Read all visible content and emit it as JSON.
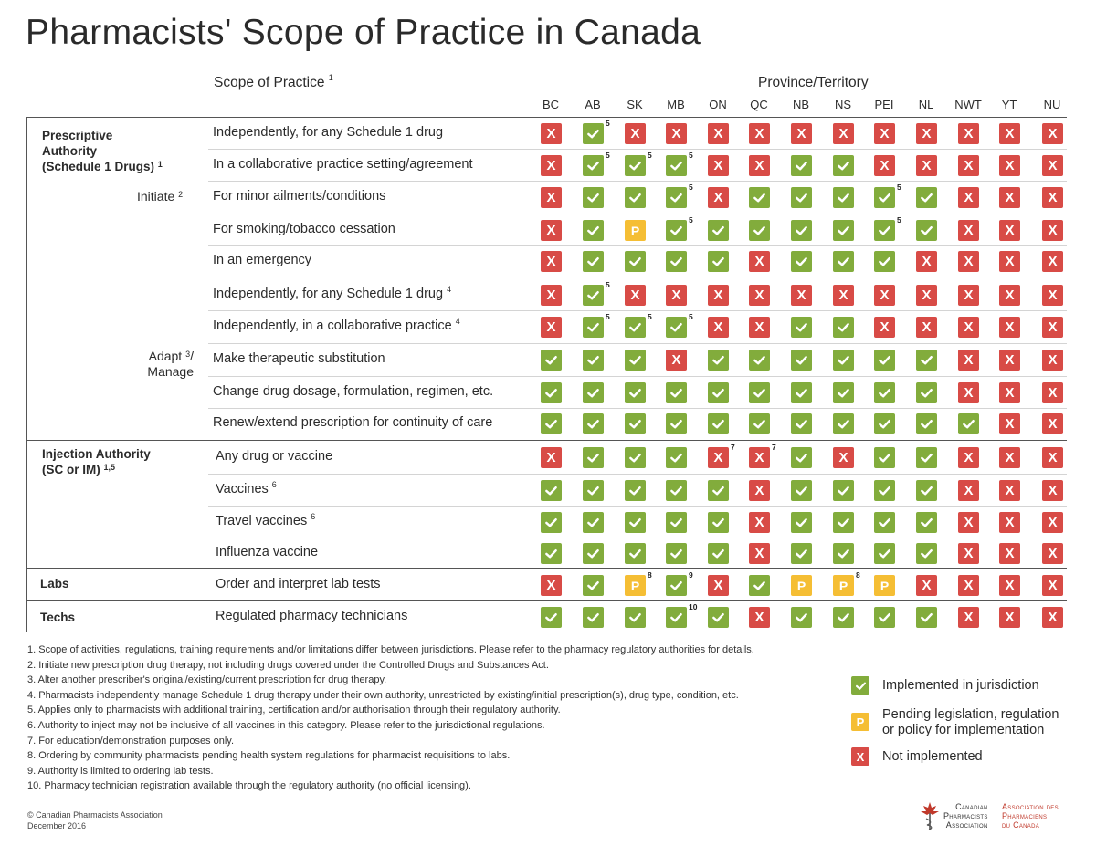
{
  "title": "Pharmacists' Scope of Practice in Canada",
  "headers": {
    "scope": "Scope of Practice",
    "scope_sup": "1",
    "province": "Province/Territory"
  },
  "provinces": [
    "BC",
    "AB",
    "SK",
    "MB",
    "ON",
    "QC",
    "NB",
    "NS",
    "PEI",
    "NL",
    "NWT",
    "YT",
    "NU"
  ],
  "groups": {
    "prescriptive": {
      "title_1": "Prescriptive",
      "title_2": "Authority",
      "title_3": "(Schedule 1 Drugs)",
      "title_sup": "1",
      "sub": "Initiate",
      "sub_sup": "2"
    },
    "adapt": {
      "line_1": "Adapt",
      "line_1_sup": "3",
      "line_1_suffix": "/",
      "line_2": "Manage"
    },
    "injection": {
      "title_1": "Injection Authority",
      "title_2": "(SC or IM)",
      "title_sup": "1,5"
    },
    "labs": {
      "title": "Labs"
    },
    "techs": {
      "title": "Techs"
    }
  },
  "rows": [
    {
      "label": "Independently, for any Schedule 1 drug",
      "sup": "",
      "status": [
        "x",
        "check",
        "x",
        "x",
        "x",
        "x",
        "x",
        "x",
        "x",
        "x",
        "x",
        "x",
        "x"
      ],
      "notes": [
        "",
        "5",
        "",
        "",
        "",
        "",
        "",
        "",
        "",
        "",
        "",
        "",
        ""
      ]
    },
    {
      "label": "In a collaborative practice setting/agreement",
      "sup": "",
      "status": [
        "x",
        "check",
        "check",
        "check",
        "x",
        "x",
        "check",
        "check",
        "x",
        "x",
        "x",
        "x",
        "x"
      ],
      "notes": [
        "",
        "5",
        "5",
        "5",
        "",
        "",
        "",
        "",
        "",
        "",
        "",
        "",
        ""
      ]
    },
    {
      "label": "For minor ailments/conditions",
      "sup": "",
      "status": [
        "x",
        "check",
        "check",
        "check",
        "x",
        "check",
        "check",
        "check",
        "check",
        "check",
        "x",
        "x",
        "x"
      ],
      "notes": [
        "",
        "",
        "",
        "5",
        "",
        "",
        "",
        "",
        "5",
        "",
        "",
        "",
        ""
      ]
    },
    {
      "label": "For smoking/tobacco cessation",
      "sup": "",
      "status": [
        "x",
        "check",
        "p",
        "check",
        "check",
        "check",
        "check",
        "check",
        "check",
        "check",
        "x",
        "x",
        "x"
      ],
      "notes": [
        "",
        "",
        "",
        "5",
        "",
        "",
        "",
        "",
        "5",
        "",
        "",
        "",
        ""
      ]
    },
    {
      "label": "In an emergency",
      "sup": "",
      "status": [
        "x",
        "check",
        "check",
        "check",
        "check",
        "x",
        "check",
        "check",
        "check",
        "x",
        "x",
        "x",
        "x"
      ],
      "notes": [
        "",
        "",
        "",
        "",
        "",
        "",
        "",
        "",
        "",
        "",
        "",
        "",
        ""
      ]
    },
    {
      "label": "Independently, for any Schedule 1 drug",
      "sup": "4",
      "status": [
        "x",
        "check",
        "x",
        "x",
        "x",
        "x",
        "x",
        "x",
        "x",
        "x",
        "x",
        "x",
        "x"
      ],
      "notes": [
        "",
        "5",
        "",
        "",
        "",
        "",
        "",
        "",
        "",
        "",
        "",
        "",
        ""
      ]
    },
    {
      "label": "Independently, in a collaborative practice",
      "sup": "4",
      "status": [
        "x",
        "check",
        "check",
        "check",
        "x",
        "x",
        "check",
        "check",
        "x",
        "x",
        "x",
        "x",
        "x"
      ],
      "notes": [
        "",
        "5",
        "5",
        "5",
        "",
        "",
        "",
        "",
        "",
        "",
        "",
        "",
        ""
      ]
    },
    {
      "label": "Make therapeutic substitution",
      "sup": "",
      "status": [
        "check",
        "check",
        "check",
        "x",
        "check",
        "check",
        "check",
        "check",
        "check",
        "check",
        "x",
        "x",
        "x"
      ],
      "notes": [
        "",
        "",
        "",
        "",
        "",
        "",
        "",
        "",
        "",
        "",
        "",
        "",
        ""
      ]
    },
    {
      "label": "Change drug dosage, formulation, regimen, etc.",
      "sup": "",
      "status": [
        "check",
        "check",
        "check",
        "check",
        "check",
        "check",
        "check",
        "check",
        "check",
        "check",
        "x",
        "x",
        "x"
      ],
      "notes": [
        "",
        "",
        "",
        "",
        "",
        "",
        "",
        "",
        "",
        "",
        "",
        "",
        ""
      ]
    },
    {
      "label": "Renew/extend prescription for continuity of care",
      "sup": "",
      "status": [
        "check",
        "check",
        "check",
        "check",
        "check",
        "check",
        "check",
        "check",
        "check",
        "check",
        "check",
        "x",
        "x"
      ],
      "notes": [
        "",
        "",
        "",
        "",
        "",
        "",
        "",
        "",
        "",
        "",
        "",
        "",
        ""
      ]
    },
    {
      "label": "Any drug or vaccine",
      "sup": "",
      "status": [
        "x",
        "check",
        "check",
        "check",
        "x",
        "x",
        "check",
        "x",
        "check",
        "check",
        "x",
        "x",
        "x"
      ],
      "notes": [
        "",
        "",
        "",
        "",
        "7",
        "7",
        "",
        "",
        "",
        "",
        "",
        "",
        ""
      ]
    },
    {
      "label": "Vaccines",
      "sup": "6",
      "status": [
        "check",
        "check",
        "check",
        "check",
        "check",
        "x",
        "check",
        "check",
        "check",
        "check",
        "x",
        "x",
        "x"
      ],
      "notes": [
        "",
        "",
        "",
        "",
        "",
        "",
        "",
        "",
        "",
        "",
        "",
        "",
        ""
      ]
    },
    {
      "label": "Travel vaccines",
      "sup": "6",
      "status": [
        "check",
        "check",
        "check",
        "check",
        "check",
        "x",
        "check",
        "check",
        "check",
        "check",
        "x",
        "x",
        "x"
      ],
      "notes": [
        "",
        "",
        "",
        "",
        "",
        "",
        "",
        "",
        "",
        "",
        "",
        "",
        ""
      ]
    },
    {
      "label": "Influenza vaccine",
      "sup": "",
      "status": [
        "check",
        "check",
        "check",
        "check",
        "check",
        "x",
        "check",
        "check",
        "check",
        "check",
        "x",
        "x",
        "x"
      ],
      "notes": [
        "",
        "",
        "",
        "",
        "",
        "",
        "",
        "",
        "",
        "",
        "",
        "",
        ""
      ]
    },
    {
      "label": "Order and interpret lab tests",
      "sup": "",
      "status": [
        "x",
        "check",
        "p",
        "check",
        "x",
        "check",
        "p",
        "p",
        "p",
        "x",
        "x",
        "x",
        "x"
      ],
      "notes": [
        "",
        "",
        "8",
        "9",
        "",
        "",
        "",
        "8",
        "",
        "",
        "",
        "",
        ""
      ]
    },
    {
      "label": "Regulated pharmacy technicians",
      "sup": "",
      "status": [
        "check",
        "check",
        "check",
        "check",
        "check",
        "x",
        "check",
        "check",
        "check",
        "check",
        "x",
        "x",
        "x"
      ],
      "notes": [
        "",
        "",
        "",
        "10",
        "",
        "",
        "",
        "",
        "",
        "",
        "",
        "",
        ""
      ]
    }
  ],
  "footnotes": [
    "1. Scope of activities, regulations, training requirements and/or limitations differ between jurisdictions. Please refer to the pharmacy regulatory authorities for details.",
    "2. Initiate new prescription drug therapy, not including drugs covered under the Controlled Drugs and Substances Act.",
    "3. Alter another prescriber's original/existing/current prescription for drug therapy.",
    "4. Pharmacists independently manage Schedule 1 drug therapy under their own authority, unrestricted by existing/initial prescription(s), drug type, condition, etc.",
    "5. Applies only to pharmacists with additional training, certification and/or authorisation through their regulatory authority.",
    "6. Authority to inject may not be inclusive of all vaccines in this category. Please refer to the jurisdictional regulations.",
    "7. For education/demonstration purposes only.",
    "8. Ordering by community pharmacists pending health system regulations for pharmacist requisitions to labs.",
    "9. Authority is limited to ordering lab tests.",
    "10. Pharmacy technician registration available through the regulatory authority (no official licensing)."
  ],
  "legend": {
    "implemented": "Implemented in jurisdiction",
    "pending_1": "Pending legislation, regulation",
    "pending_2": "or policy for implementation",
    "not_implemented": "Not implemented",
    "p_letter": "P",
    "x_letter": "X"
  },
  "copyright": {
    "line_1": "© Canadian Pharmacists Association",
    "line_2": "December 2016"
  },
  "logo": {
    "en_1": "Canadian",
    "en_2": "Pharmacists",
    "en_3": "Association",
    "fr_1": "Association des",
    "fr_2": "Pharmaciens",
    "fr_3": "du Canada"
  },
  "colors": {
    "check": "#82ac3c",
    "x": "#d84b46",
    "p": "#f5be34",
    "fr_logo": "#c0392b"
  }
}
